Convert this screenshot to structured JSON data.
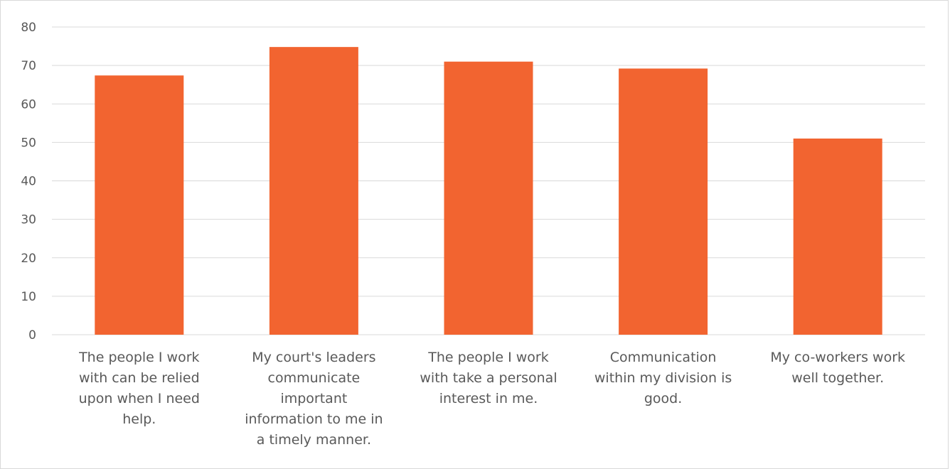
{
  "chart_data": {
    "type": "bar",
    "title": "",
    "xlabel": "",
    "ylabel": "",
    "ylim": [
      0,
      80
    ],
    "yticks": [
      0,
      10,
      20,
      30,
      40,
      50,
      60,
      70,
      80
    ],
    "grid": true,
    "legend": "none",
    "bar_color": "#f26430",
    "categories": [
      [
        "The people I work",
        "with can be relied",
        "upon when I need",
        "help."
      ],
      [
        "My court's leaders",
        "communicate",
        "important",
        "information to me in",
        "a timely manner."
      ],
      [
        "The people I work",
        "with take a personal",
        "interest in me."
      ],
      [
        "Communication",
        "within my division is",
        "good."
      ],
      [
        "My co-workers work",
        "well together."
      ]
    ],
    "values": [
      67.4,
      74.8,
      71.0,
      69.2,
      51.0
    ]
  }
}
